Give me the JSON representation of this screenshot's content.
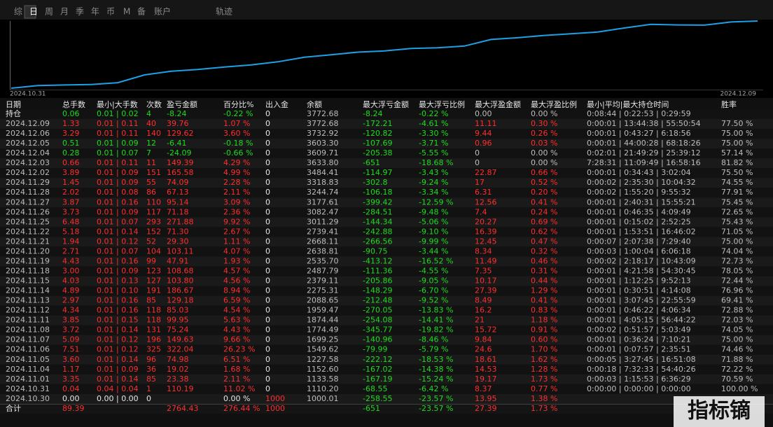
{
  "tabs": [
    "综",
    "日",
    "周",
    "月",
    "季",
    "年",
    "币",
    "M",
    "备",
    "账户"
  ],
  "active_tab": 1,
  "track_label": "轨迹",
  "chart": {
    "start_label": "2024.10.31",
    "end_label": "2024.12.09",
    "line_color": "#1ea0e6",
    "balance_column": 7
  },
  "table": {
    "header": [
      "日期",
      "总手数",
      "最小|大手数",
      "次数",
      "盈亏金额",
      "百分比%",
      "出入金",
      "余额",
      "最大浮亏金额",
      "最大浮亏比例",
      "最大浮盈金额",
      "最大浮盈比例",
      "最小|平均|最大持仓时间",
      "胜率"
    ],
    "rows": [
      {
        "cells": [
          "持仓",
          "0.06",
          "0.01 | 0.02",
          "4",
          "-8.24",
          "-0.22 %",
          "0",
          "3772.68",
          "-8.24",
          "-0.22 %",
          "0.00",
          "0.00 %",
          "0:08:44 | 0:22:53 | 0:29:59",
          null
        ]
      },
      {
        "cells": [
          "2024.12.09",
          "1.33",
          "0.01 | 0.11",
          "40",
          "39.76",
          "1.07 %",
          "0",
          "3772.68",
          "-172.21",
          "-4.61 %",
          "11.11",
          "0.30 %",
          "0:00:01 | 13:44:38 | 55:50:54",
          "77.50 %"
        ]
      },
      {
        "cells": [
          "2024.12.06",
          "3.29",
          "0.01 | 0.11",
          "140",
          "129.62",
          "3.60 %",
          "0",
          "3732.92",
          "-120.82",
          "-3.30 %",
          "9.44",
          "0.26 %",
          "0:00:01 | 0:43:27 | 6:18:56",
          "75.00 %"
        ]
      },
      {
        "cells": [
          "2024.12.05",
          "0.51",
          "0.01 | 0.09",
          "12",
          "-6.41",
          "-0.18 %",
          "0",
          "3603.30",
          "-107.69",
          "-3.71 %",
          "0.96",
          "0.03 %",
          "0:00:01 | 44:00:28 | 68:18:26",
          "75.00 %"
        ]
      },
      {
        "cells": [
          "2024.12.04",
          "0.28",
          "0.01 | 0.07",
          "7",
          "-24.09",
          "-0.66 %",
          "0",
          "3609.71",
          "-205.38",
          "-5.55 %",
          "0",
          "0.00 %",
          "0:02:01 | 21:49:29 | 25:39:12",
          "57.14 %"
        ]
      },
      {
        "cells": [
          "2024.12.03",
          "0.66",
          "0.01 | 0.11",
          "11",
          "149.39",
          "4.29 %",
          "0",
          "3633.80",
          "-651",
          "-18.68 %",
          "0",
          "0.00 %",
          "7:28:31 | 11:09:49 | 16:58:16",
          "81.82 %"
        ]
      },
      {
        "cells": [
          "2024.12.02",
          "3.89",
          "0.01 | 0.09",
          "151",
          "165.58",
          "4.99 %",
          "0",
          "3484.41",
          "-114.97",
          "-3.43 %",
          "22.87",
          "0.66 %",
          "0:00:01 | 0:34:43 | 3:02:04",
          "75.50 %"
        ]
      },
      {
        "cells": [
          "2024.11.29",
          "1.45",
          "0.01 | 0.09",
          "55",
          "74.09",
          "2.28 %",
          "0",
          "3318.83",
          "-302.8",
          "-9.24 %",
          "17",
          "0.52 %",
          "0:00:02 | 2:35:30 | 10:04:32",
          "74.55 %"
        ]
      },
      {
        "cells": [
          "2024.11.28",
          "2.02",
          "0.01 | 0.08",
          "86",
          "67.13",
          "2.11 %",
          "0",
          "3244.74",
          "-106.18",
          "-3.34 %",
          "6.31",
          "0.20 %",
          "0:00:02 | 1:55:20 | 9:55:32",
          "77.91 %"
        ]
      },
      {
        "cells": [
          "2024.11.27",
          "3.87",
          "0.01 | 0.16",
          "110",
          "95.14",
          "3.09 %",
          "0",
          "3177.61",
          "-399.42",
          "-12.59 %",
          "12.56",
          "0.41 %",
          "0:00:01 | 2:40:31 | 15:55:21",
          "75.45 %"
        ]
      },
      {
        "cells": [
          "2024.11.26",
          "3.73",
          "0.01 | 0.09",
          "117",
          "71.18",
          "2.36 %",
          "0",
          "3082.47",
          "-284.51",
          "-9.48 %",
          "7.4",
          "0.24 %",
          "0:00:01 | 0:46:35 | 4:09:49",
          "72.65 %"
        ]
      },
      {
        "cells": [
          "2024.11.25",
          "6.48",
          "0.01 | 0.07",
          "293",
          "271.88",
          "9.92 %",
          "0",
          "3011.29",
          "-144.34",
          "-5.06 %",
          "20.27",
          "0.69 %",
          "0:00:01 | 0:15:02 | 2:52:25",
          "75.43 %"
        ]
      },
      {
        "cells": [
          "2024.11.22",
          "5.18",
          "0.01 | 0.14",
          "152",
          "71.30",
          "2.67 %",
          "0",
          "2739.41",
          "-242.88",
          "-9.10 %",
          "16.39",
          "0.62 %",
          "0:00:01 | 1:53:51 | 16:46:02",
          "71.05 %"
        ]
      },
      {
        "cells": [
          "2024.11.21",
          "1.94",
          "0.01 | 0.12",
          "52",
          "29.30",
          "1.11 %",
          "0",
          "2668.11",
          "-266.56",
          "-9.99 %",
          "12.45",
          "0.47 %",
          "0:00:07 | 2:07:38 | 7:29:40",
          "75.00 %"
        ]
      },
      {
        "cells": [
          "2024.11.20",
          "2.71",
          "0.01 | 0.07",
          "104",
          "103.11",
          "4.07 %",
          "0",
          "2638.81",
          "-90.75",
          "-3.44 %",
          "8.34",
          "0.32 %",
          "0:00:03 | 1:00:04 | 6:06:18",
          "74.04 %"
        ]
      },
      {
        "cells": [
          "2024.11.19",
          "4.43",
          "0.01 | 0.16",
          "99",
          "47.91",
          "1.93 %",
          "0",
          "2535.70",
          "-413.12",
          "-16.52 %",
          "11.49",
          "0.46 %",
          "0:00:02 | 2:18:17 | 10:43:09",
          "72.73 %"
        ]
      },
      {
        "cells": [
          "2024.11.18",
          "3.00",
          "0.01 | 0.09",
          "123",
          "108.68",
          "4.57 %",
          "0",
          "2487.79",
          "-111.36",
          "-4.55 %",
          "7.35",
          "0.31 %",
          "0:00:01 | 4:21:58 | 54:30:45",
          "78.05 %"
        ]
      },
      {
        "cells": [
          "2024.11.15",
          "4.03",
          "0.01 | 0.13",
          "127",
          "103.80",
          "4.56 %",
          "0",
          "2379.11",
          "-205.86",
          "-9.05 %",
          "10.17",
          "0.44 %",
          "0:00:01 | 1:12:25 | 9:52:13",
          "72.44 %"
        ]
      },
      {
        "cells": [
          "2024.11.14",
          "4.89",
          "0.01 | 0.10",
          "191",
          "186.67",
          "8.94 %",
          "0",
          "2275.31",
          "-148.29",
          "-6.70 %",
          "27.39",
          "1.29 %",
          "0:00:01 | 0:30:51 | 4:14:08",
          "76.96 %"
        ]
      },
      {
        "cells": [
          "2024.11.13",
          "2.97",
          "0.01 | 0.16",
          "85",
          "129.18",
          "6.59 %",
          "0",
          "2088.65",
          "-212.48",
          "-9.52 %",
          "8.49",
          "0.41 %",
          "0:00:01 | 3:07:45 | 22:55:59",
          "69.41 %"
        ]
      },
      {
        "cells": [
          "2024.11.12",
          "4.34",
          "0.01 | 0.16",
          "118",
          "85.03",
          "4.54 %",
          "0",
          "1959.47",
          "-270.05",
          "-13.83 %",
          "16.2",
          "0.83 %",
          "0:00:01 | 0:46:22 | 4:06:34",
          "72.88 %"
        ]
      },
      {
        "cells": [
          "2024.11.11",
          "3.85",
          "0.01 | 0.15",
          "118",
          "99.95",
          "5.63 %",
          "0",
          "1874.44",
          "-254.08",
          "-14.41 %",
          "21",
          "1.18 %",
          "0:00:01 | 4:05:15 | 56:44:22",
          "72.03 %"
        ]
      },
      {
        "cells": [
          "2024.11.08",
          "3.72",
          "0.01 | 0.14",
          "131",
          "75.24",
          "4.43 %",
          "0",
          "1774.49",
          "-345.77",
          "-19.82 %",
          "15.72",
          "0.91 %",
          "0:00:02 | 0:51:57 | 5:03:49",
          "74.05 %"
        ]
      },
      {
        "cells": [
          "2024.11.07",
          "5.09",
          "0.01 | 0.12",
          "196",
          "149.63",
          "9.66 %",
          "0",
          "1699.25",
          "-140.96",
          "-8.46 %",
          "9.84",
          "0.60 %",
          "0:00:01 | 0:36:24 | 7:10:21",
          "75.00 %"
        ]
      },
      {
        "cells": [
          "2024.11.06",
          "7.51",
          "0.01 | 0.12",
          "325",
          "322.04",
          "26.23 %",
          "0",
          "1549.62",
          "-79.99",
          "-5.79 %",
          "24.6",
          "1.70 %",
          "0:00:01 | 0:07:57 | 2:35:51",
          "74.46 %"
        ]
      },
      {
        "cells": [
          "2024.11.05",
          "3.60",
          "0.01 | 0.14",
          "96",
          "74.98",
          "6.51 %",
          "0",
          "1227.58",
          "-222.12",
          "-18.53 %",
          "18.61",
          "1.62 %",
          "0:00:05 | 3:27:45 | 16:51:08",
          "71.88 %"
        ]
      },
      {
        "cells": [
          "2024.11.04",
          "1.17",
          "0.01 | 0.09",
          "36",
          "19.02",
          "1.68 %",
          "0",
          "1152.60",
          "-167.02",
          "-14.38 %",
          "14.53",
          "1.28 %",
          "0:00:18 | 7:32:33 | 54:40:26",
          "72.22 %"
        ]
      },
      {
        "cells": [
          "2024.11.01",
          "3.35",
          "0.01 | 0.14",
          "85",
          "23.38",
          "2.11 %",
          "0",
          "1133.58",
          "-167.19",
          "-15.24 %",
          "19.17",
          "1.73 %",
          "0:00:03 | 1:15:53 | 6:36:29",
          "70.59 %"
        ]
      },
      {
        "cells": [
          "2024.10.31",
          "0.04",
          "0.04 | 0.04",
          "1",
          "110.19",
          "11.02 %",
          "0",
          "1110.20",
          "-68.55",
          "-6.42 %",
          "8.37",
          "0.77 %",
          "0:00:00 | 0:00:00 | 0:00:00",
          "100.00 %"
        ]
      },
      {
        "cells": [
          "2024.10.30",
          "0.00",
          "0.00 | 0.00",
          "0",
          null,
          "0.00 %",
          "1000",
          "1000.01",
          "-258.55",
          "-23.57 %",
          "13.95",
          "1.38 %",
          null,
          null
        ]
      },
      {
        "cells": [
          "合计",
          "89.39",
          null,
          null,
          "2764.43",
          "276.44 %",
          "1000",
          null,
          "-651",
          "-23.57 %",
          "27.39",
          "1.73 %",
          null,
          null
        ]
      }
    ]
  },
  "watermark": "指标镝"
}
